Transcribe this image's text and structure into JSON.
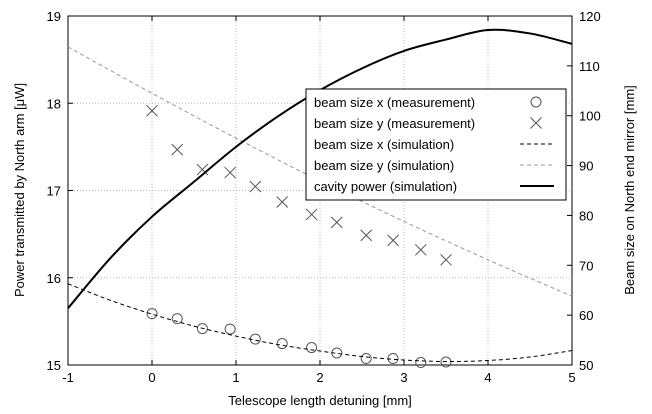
{
  "chart_data": {
    "type": "line",
    "xlabel": "Telescope length detuning [mm]",
    "ylabel_left": "Power transmitted by North arm [μW]",
    "ylabel_right": "Beam size on North end mirror [mm]",
    "xlim": [
      -1,
      5
    ],
    "ylim_left": [
      15,
      19
    ],
    "ylim_right": [
      50,
      120
    ],
    "x_ticks": [
      "-1",
      "0",
      "1",
      "2",
      "3",
      "4",
      "5"
    ],
    "y_ticks_left": [
      "15",
      "16",
      "17",
      "18",
      "19"
    ],
    "y_ticks_right": [
      "50",
      "60",
      "70",
      "80",
      "90",
      "100",
      "110",
      "120"
    ],
    "grid": true,
    "legend_position": "top-right",
    "series": [
      {
        "name": "beam size x (measurement)",
        "kind": "scatter",
        "marker": "circle",
        "axis": "right",
        "x": [
          0.0,
          0.3,
          0.6,
          0.93,
          1.23,
          1.55,
          1.9,
          2.2,
          2.55,
          2.87,
          3.2,
          3.5
        ],
        "y": [
          60.3,
          59.3,
          57.3,
          57.2,
          55.2,
          54.3,
          53.5,
          52.4,
          51.3,
          51.3,
          50.5,
          50.6
        ]
      },
      {
        "name": "beam size y (measurement)",
        "kind": "scatter",
        "marker": "x",
        "axis": "right",
        "x": [
          0.0,
          0.3,
          0.6,
          0.93,
          1.23,
          1.55,
          1.9,
          2.2,
          2.55,
          2.87,
          3.2,
          3.5
        ],
        "y": [
          101,
          93.2,
          89.2,
          88.6,
          85.8,
          82.7,
          80.2,
          78.6,
          76.0,
          75.0,
          73.1,
          71.1
        ]
      },
      {
        "name": "beam size x (simulation)",
        "kind": "line",
        "style": "dashed",
        "color": "#000000",
        "axis": "right",
        "x": [
          -1,
          -0.5,
          0,
          0.5,
          1,
          1.5,
          2,
          2.5,
          3,
          3.5,
          4,
          4.5,
          5
        ],
        "y": [
          66.3,
          63.0,
          60.2,
          57.8,
          55.8,
          54.1,
          52.8,
          51.7,
          51.0,
          50.7,
          50.9,
          51.6,
          52.9
        ]
      },
      {
        "name": "beam size y (simulation)",
        "kind": "line",
        "style": "dashed",
        "color": "#999999",
        "axis": "right",
        "x": [
          -1,
          0,
          1,
          2,
          3,
          4,
          5
        ],
        "y": [
          113.8,
          104.5,
          95.5,
          86.9,
          78.8,
          71.1,
          63.8
        ]
      },
      {
        "name": "cavity power (simulation)",
        "kind": "line",
        "style": "solid",
        "color": "#000000",
        "axis": "left",
        "x": [
          -1,
          -0.5,
          0,
          0.5,
          1,
          1.5,
          2,
          2.5,
          3,
          3.5,
          4,
          4.5,
          5
        ],
        "y": [
          15.65,
          16.22,
          16.7,
          17.1,
          17.5,
          17.85,
          18.15,
          18.4,
          18.6,
          18.73,
          18.84,
          18.8,
          18.68
        ]
      }
    ]
  }
}
